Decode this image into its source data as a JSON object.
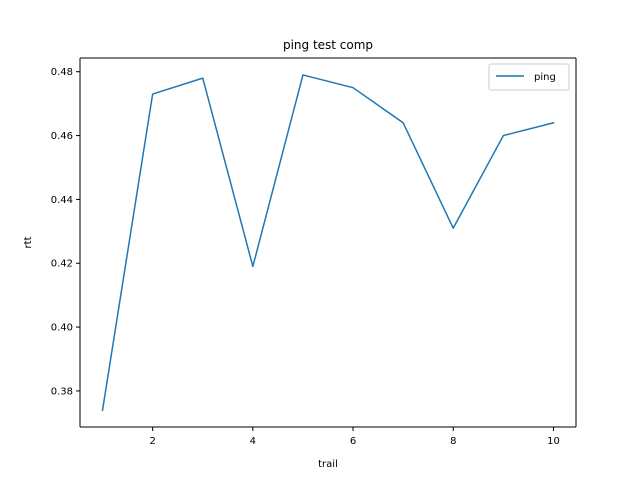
{
  "chart_data": {
    "type": "line",
    "title": "ping test comp",
    "xlabel": "trail",
    "ylabel": "rtt",
    "x": [
      1,
      2,
      3,
      4,
      5,
      6,
      7,
      8,
      9,
      10
    ],
    "series": [
      {
        "name": "ping",
        "color": "#1f77b4",
        "values": [
          0.374,
          0.473,
          0.478,
          0.419,
          0.479,
          0.475,
          0.464,
          0.431,
          0.46,
          0.464
        ]
      }
    ],
    "xlim": [
      0.55,
      10.45
    ],
    "ylim": [
      0.3687,
      0.4843
    ],
    "xticks": [
      2,
      4,
      6,
      8,
      10
    ],
    "xtick_labels": [
      "2",
      "4",
      "6",
      "8",
      "10"
    ],
    "yticks": [
      0.38,
      0.4,
      0.42,
      0.44,
      0.46,
      0.48
    ],
    "ytick_labels": [
      "0.38",
      "0.40",
      "0.42",
      "0.44",
      "0.46",
      "0.48"
    ],
    "grid": false,
    "legend_position": "top-right"
  }
}
